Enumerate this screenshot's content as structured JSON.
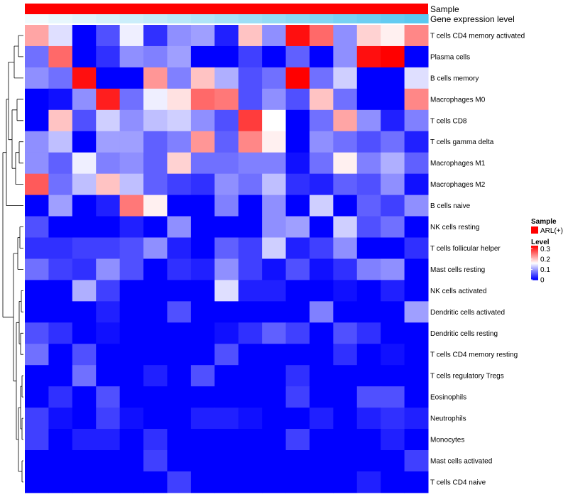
{
  "chart_data": {
    "type": "heatmap",
    "title": "",
    "column_annotations": [
      {
        "name": "Sample",
        "color": "#ff0000"
      },
      {
        "name": "Gene expression level",
        "gradient": [
          "#ffffff",
          "#5bc8f0"
        ]
      }
    ],
    "rows": [
      "T cells CD4 memory activated",
      "Plasma cells",
      "B cells memory",
      "Macrophages M0",
      "T cells CD8",
      "T cells gamma delta",
      "Macrophages M1",
      "Macrophages M2",
      "B cells naive",
      "NK cells resting",
      "T cells follicular helper",
      "Mast cells resting",
      "NK cells activated",
      "Dendritic cells activated",
      "Dendritic cells resting",
      "T cells CD4 memory resting",
      "T cells regulatory  Tregs",
      "Eosinophils",
      "Neutrophils",
      "Monocytes",
      "Mast cells activated",
      "T cells CD4 naive"
    ],
    "ncols": 17,
    "values": [
      [
        0.22,
        0.14,
        0.0,
        0.05,
        0.15,
        0.03,
        0.09,
        0.1,
        0.02,
        0.2,
        0.09,
        0.32,
        0.26,
        0.09,
        0.19,
        0.17,
        0.24
      ],
      [
        0.07,
        0.26,
        0.0,
        0.03,
        0.09,
        0.08,
        0.1,
        0.0,
        0.0,
        0.04,
        0.0,
        0.06,
        0.0,
        0.09,
        0.32,
        0.33,
        0.0
      ],
      [
        0.09,
        0.07,
        0.32,
        0.0,
        0.0,
        0.23,
        0.08,
        0.2,
        0.11,
        0.05,
        0.07,
        0.33,
        0.07,
        0.13,
        0.0,
        0.0,
        0.14
      ],
      [
        0.0,
        0.01,
        0.09,
        0.31,
        0.07,
        0.15,
        0.18,
        0.26,
        0.25,
        0.05,
        0.09,
        0.05,
        0.2,
        0.07,
        0.0,
        0.0,
        0.24
      ],
      [
        0.0,
        0.2,
        0.05,
        0.13,
        0.09,
        0.12,
        0.13,
        0.09,
        0.05,
        0.29,
        0.16,
        0.0,
        0.07,
        0.22,
        0.09,
        0.02,
        0.08
      ],
      [
        0.09,
        0.12,
        0.0,
        0.1,
        0.1,
        0.06,
        0.08,
        0.23,
        0.06,
        0.24,
        0.17,
        0.0,
        0.09,
        0.07,
        0.05,
        0.07,
        0.02
      ],
      [
        0.09,
        0.06,
        0.15,
        0.08,
        0.09,
        0.06,
        0.19,
        0.07,
        0.07,
        0.08,
        0.08,
        0.01,
        0.07,
        0.17,
        0.08,
        0.11,
        0.06
      ],
      [
        0.27,
        0.07,
        0.12,
        0.2,
        0.12,
        0.06,
        0.04,
        0.03,
        0.09,
        0.07,
        0.12,
        0.03,
        0.02,
        0.06,
        0.05,
        0.09,
        0.01
      ],
      [
        0.0,
        0.1,
        0.0,
        0.02,
        0.25,
        0.17,
        0.0,
        0.0,
        0.08,
        0.0,
        0.09,
        0.0,
        0.13,
        0.0,
        0.06,
        0.04,
        0.09
      ],
      [
        0.05,
        0.0,
        0.0,
        0.0,
        0.02,
        0.0,
        0.09,
        0.0,
        0.0,
        0.0,
        0.09,
        0.1,
        0.0,
        0.13,
        0.05,
        0.07,
        0.0
      ],
      [
        0.03,
        0.03,
        0.04,
        0.04,
        0.05,
        0.09,
        0.02,
        0.0,
        0.06,
        0.04,
        0.13,
        0.02,
        0.04,
        0.09,
        0.0,
        0.0,
        0.03
      ],
      [
        0.07,
        0.04,
        0.03,
        0.09,
        0.05,
        0.0,
        0.03,
        0.02,
        0.09,
        0.04,
        0.01,
        0.05,
        0.01,
        0.03,
        0.08,
        0.09,
        0.0
      ],
      [
        0.0,
        0.0,
        0.11,
        0.04,
        0.0,
        0.0,
        0.0,
        0.0,
        0.14,
        0.02,
        0.02,
        0.0,
        0.0,
        0.01,
        0.0,
        0.02,
        0.0
      ],
      [
        0.0,
        0.0,
        0.0,
        0.02,
        0.0,
        0.0,
        0.05,
        0.0,
        0.0,
        0.0,
        0.0,
        0.0,
        0.08,
        0.0,
        0.0,
        0.0,
        0.1
      ],
      [
        0.05,
        0.03,
        0.0,
        0.01,
        0.0,
        0.0,
        0.0,
        0.0,
        0.01,
        0.03,
        0.06,
        0.04,
        0.0,
        0.05,
        0.03,
        0.0,
        0.0
      ],
      [
        0.07,
        0.0,
        0.05,
        0.0,
        0.0,
        0.0,
        0.0,
        0.0,
        0.05,
        0.0,
        0.0,
        0.0,
        0.0,
        0.03,
        0.0,
        0.01,
        0.0
      ],
      [
        0.0,
        0.0,
        0.07,
        0.0,
        0.0,
        0.02,
        0.0,
        0.05,
        0.0,
        0.0,
        0.0,
        0.03,
        0.0,
        0.0,
        0.0,
        0.0,
        0.0
      ],
      [
        0.0,
        0.03,
        0.0,
        0.05,
        0.0,
        0.0,
        0.0,
        0.0,
        0.0,
        0.0,
        0.0,
        0.04,
        0.0,
        0.0,
        0.05,
        0.05,
        0.0
      ],
      [
        0.04,
        0.01,
        0.0,
        0.04,
        0.01,
        0.0,
        0.0,
        0.02,
        0.02,
        0.01,
        0.0,
        0.0,
        0.02,
        0.0,
        0.02,
        0.03,
        0.02
      ],
      [
        0.04,
        0.0,
        0.02,
        0.02,
        0.0,
        0.03,
        0.0,
        0.0,
        0.0,
        0.0,
        0.0,
        0.04,
        0.0,
        0.0,
        0.0,
        0.02,
        0.0
      ],
      [
        0.0,
        0.0,
        0.0,
        0.0,
        0.0,
        0.04,
        0.0,
        0.0,
        0.0,
        0.0,
        0.0,
        0.0,
        0.0,
        0.0,
        0.0,
        0.0,
        0.04
      ],
      [
        0.0,
        0.0,
        0.0,
        0.0,
        0.0,
        0.0,
        0.04,
        0.0,
        0.0,
        0.0,
        0.0,
        0.0,
        0.0,
        0.0,
        0.02,
        0.0,
        0.0
      ]
    ],
    "color_scale": {
      "colors": [
        "#0000ff",
        "#ffffff",
        "#ff0000"
      ],
      "range": [
        0,
        0.33
      ],
      "mid": 0.16
    },
    "legend": {
      "sample_title": "Sample",
      "sample_entry": "ARL(+)",
      "sample_color": "#ff0000",
      "level_title": "Level",
      "ticks": [
        {
          "label": "0.3",
          "value": 0.3
        },
        {
          "label": "0.2",
          "value": 0.2
        },
        {
          "label": "0.1",
          "value": 0.1
        },
        {
          "label": "0",
          "value": 0
        }
      ],
      "placement": "right"
    },
    "dendrogram": "rows, left side"
  }
}
